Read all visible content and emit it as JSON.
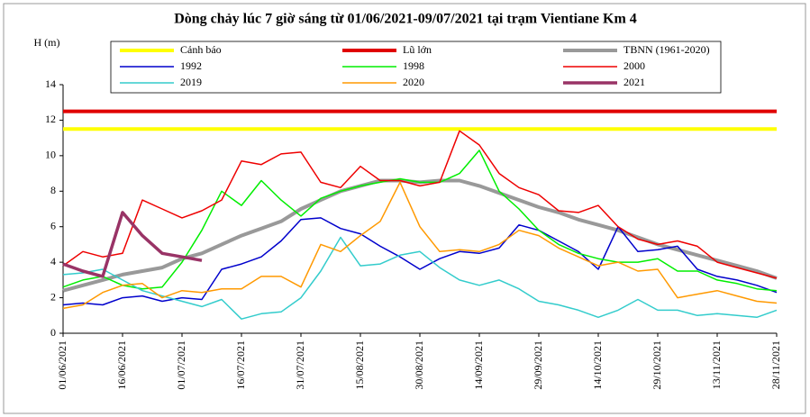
{
  "chart_data": {
    "type": "line",
    "title": "Dòng chảy lúc 7 giờ sáng từ 01/06/2021-09/07/2021 tại trạm Vientiane Km 4",
    "y_label": "H (m)",
    "x": [
      "01/06/2021",
      "06/06/2021",
      "11/06/2021",
      "16/06/2021",
      "21/06/2021",
      "26/06/2021",
      "01/07/2021",
      "06/07/2021",
      "11/07/2021",
      "16/07/2021",
      "21/07/2021",
      "26/07/2021",
      "31/07/2021",
      "05/08/2021",
      "10/08/2021",
      "15/08/2021",
      "20/08/2021",
      "25/08/2021",
      "30/08/2021",
      "04/09/2021",
      "09/09/2021",
      "14/09/2021",
      "19/09/2021",
      "24/09/2021",
      "29/09/2021",
      "04/10/2021",
      "09/10/2021",
      "14/10/2021",
      "19/10/2021",
      "24/10/2021",
      "29/10/2021",
      "03/11/2021",
      "08/11/2021",
      "13/11/2021",
      "18/11/2021",
      "23/11/2021",
      "28/11/2021"
    ],
    "xticks": [
      "01/06/2021",
      "16/06/2021",
      "01/07/2021",
      "16/07/2021",
      "31/07/2021",
      "15/08/2021",
      "30/08/2021",
      "14/09/2021",
      "29/09/2021",
      "14/10/2021",
      "29/10/2021",
      "13/11/2021",
      "28/11/2021"
    ],
    "ylim": [
      0,
      14
    ],
    "yticks": [
      0,
      2,
      4,
      6,
      8,
      10,
      12,
      14
    ],
    "series": [
      {
        "name": "Cảnh báo",
        "color": "#ffff00",
        "level": 11.5
      },
      {
        "name": "Lũ lớn",
        "color": "#e00000",
        "level": 12.5
      },
      {
        "name": "TBNN (1961-2020)",
        "color": "#999999",
        "values": [
          2.4,
          2.7,
          3.0,
          3.3,
          3.5,
          3.7,
          4.2,
          4.5,
          5.0,
          5.5,
          5.9,
          6.3,
          7.0,
          7.5,
          8.0,
          8.3,
          8.6,
          8.6,
          8.5,
          8.6,
          8.6,
          8.3,
          7.9,
          7.5,
          7.1,
          6.8,
          6.4,
          6.1,
          5.8,
          5.4,
          5.0,
          4.7,
          4.4,
          4.1,
          3.8,
          3.5,
          3.1
        ]
      },
      {
        "name": "1992",
        "color": "#0000cc",
        "values": [
          1.6,
          1.7,
          1.6,
          2.0,
          2.1,
          1.8,
          2.0,
          1.9,
          3.6,
          3.9,
          4.3,
          5.2,
          6.4,
          6.5,
          5.9,
          5.6,
          4.9,
          4.3,
          3.6,
          4.2,
          4.6,
          4.5,
          4.8,
          6.1,
          5.8,
          5.2,
          4.6,
          3.6,
          6.0,
          4.6,
          4.7,
          4.9,
          3.6,
          3.2,
          3.0,
          2.7,
          2.3
        ]
      },
      {
        "name": "1998",
        "color": "#00ee00",
        "values": [
          2.6,
          3.0,
          3.2,
          2.7,
          2.5,
          2.6,
          4.0,
          5.8,
          8.0,
          7.2,
          8.6,
          7.5,
          6.6,
          7.6,
          8.0,
          8.3,
          8.5,
          8.7,
          8.5,
          8.5,
          9.0,
          10.3,
          8.0,
          7.0,
          5.8,
          5.0,
          4.5,
          4.2,
          4.0,
          4.0,
          4.2,
          3.5,
          3.5,
          3.0,
          2.8,
          2.5,
          2.4
        ]
      },
      {
        "name": "2000",
        "color": "#ee0000",
        "values": [
          3.8,
          4.6,
          4.3,
          4.5,
          7.5,
          7.0,
          6.5,
          6.9,
          7.5,
          9.7,
          9.5,
          10.1,
          10.2,
          8.5,
          8.2,
          9.4,
          8.6,
          8.6,
          8.3,
          8.5,
          11.4,
          10.6,
          9.0,
          8.2,
          7.8,
          6.9,
          6.8,
          7.2,
          6.0,
          5.3,
          5.0,
          5.2,
          4.9,
          4.0,
          3.7,
          3.4,
          3.1
        ]
      },
      {
        "name": "2019",
        "color": "#33cccc",
        "values": [
          3.3,
          3.4,
          3.6,
          3.0,
          2.4,
          2.1,
          1.8,
          1.5,
          1.9,
          0.8,
          1.1,
          1.2,
          2.0,
          3.5,
          5.4,
          3.8,
          3.9,
          4.4,
          4.6,
          3.7,
          3.0,
          2.7,
          3.0,
          2.5,
          1.8,
          1.6,
          1.3,
          0.9,
          1.3,
          1.9,
          1.3,
          1.3,
          1.0,
          1.1,
          1.0,
          0.9,
          1.3
        ]
      },
      {
        "name": "2020",
        "color": "#ff9900",
        "values": [
          1.4,
          1.6,
          2.3,
          2.7,
          2.8,
          2.0,
          2.4,
          2.3,
          2.5,
          2.5,
          3.2,
          3.2,
          2.6,
          5.0,
          4.6,
          5.5,
          6.3,
          8.5,
          6.0,
          4.6,
          4.7,
          4.6,
          5.0,
          5.8,
          5.5,
          4.8,
          4.3,
          3.8,
          4.0,
          3.5,
          3.6,
          2.0,
          2.2,
          2.4,
          2.1,
          1.8,
          1.7
        ]
      },
      {
        "name": "2021",
        "color": "#993366",
        "values": [
          3.9,
          3.5,
          3.2,
          6.8,
          5.5,
          4.5,
          4.3,
          4.1,
          null,
          null,
          null,
          null,
          null,
          null,
          null,
          null,
          null,
          null,
          null,
          null,
          null,
          null,
          null,
          null,
          null,
          null,
          null,
          null,
          null,
          null,
          null,
          null,
          null,
          null,
          null,
          null,
          null
        ]
      }
    ]
  }
}
